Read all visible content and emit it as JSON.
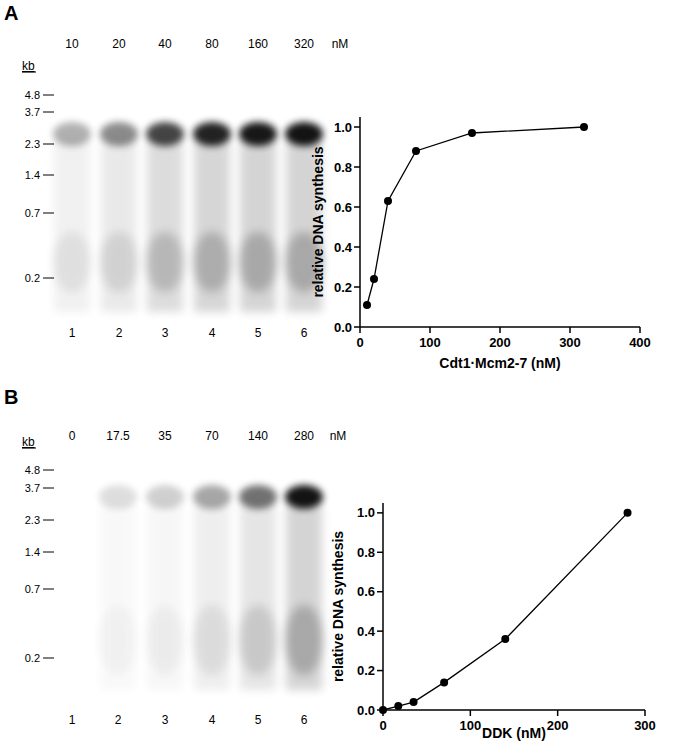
{
  "chart_data": [
    {
      "type": "line",
      "x": [
        10,
        20,
        40,
        80,
        160,
        320
      ],
      "series": [
        {
          "values": [
            0.11,
            0.24,
            0.63,
            0.88,
            0.97,
            1.0
          ],
          "color": "#000000",
          "marker": "circle"
        }
      ],
      "xlabel": "Cdt1·Mcm2-7 (nM)",
      "ylabel": "relative DNA synthesis",
      "xlim": [
        0,
        400
      ],
      "xticks": [
        0,
        100,
        200,
        300,
        400
      ],
      "ylim": [
        0,
        1.05
      ],
      "yticks": [
        {
          "value": 0,
          "label": "0.0"
        },
        {
          "value": 0.2,
          "label": "0.2"
        },
        {
          "value": 0.4,
          "label": "0.4"
        },
        {
          "value": 0.6,
          "label": "0.6"
        },
        {
          "value": 0.8,
          "label": "0.8"
        },
        {
          "value": 1,
          "label": "1.0"
        }
      ]
    },
    {
      "type": "line",
      "x": [
        0,
        17.5,
        35,
        70,
        140,
        280
      ],
      "series": [
        {
          "values": [
            0,
            0.02,
            0.04,
            0.14,
            0.36,
            1.0
          ],
          "color": "#000000",
          "marker": "circle"
        }
      ],
      "xlabel": "DDK (nM)",
      "ylabel": "relative DNA synthesis",
      "xlim": [
        0,
        300
      ],
      "xticks": [
        0,
        100,
        200,
        300
      ],
      "ylim": [
        0,
        1.05
      ],
      "yticks": [
        {
          "value": 0,
          "label": "0.0"
        },
        {
          "value": 0.2,
          "label": "0.2"
        },
        {
          "value": 0.4,
          "label": "0.4"
        },
        {
          "value": 0.6,
          "label": "0.6"
        },
        {
          "value": 0.8,
          "label": "0.8"
        },
        {
          "value": 1,
          "label": "1.0"
        }
      ]
    }
  ],
  "gels": [
    {
      "panel": "A",
      "unit_label": "kb",
      "markers": [
        4.8,
        3.7,
        2.3,
        1.4,
        0.7,
        0.2
      ],
      "concentrations": [
        10,
        20,
        40,
        80,
        160,
        320
      ],
      "concentration_unit": "nM",
      "lanes": [
        1,
        2,
        3,
        4,
        5,
        6
      ]
    },
    {
      "panel": "B",
      "unit_label": "kb",
      "markers": [
        4.8,
        3.7,
        2.3,
        1.4,
        0.7,
        0.2
      ],
      "concentrations": [
        0,
        17.5,
        35,
        70,
        140,
        280
      ],
      "concentration_unit": "nM",
      "lanes": [
        1,
        2,
        3,
        4,
        5,
        6
      ]
    }
  ]
}
